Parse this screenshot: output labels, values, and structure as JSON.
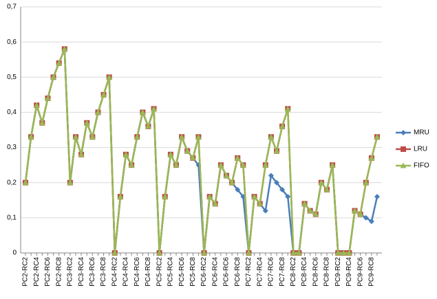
{
  "chart_data": {
    "type": "line",
    "categories": [
      "PC2-RC2",
      null,
      "PC2-RC4",
      null,
      "PC2-RC6",
      null,
      "PC2-RC8",
      null,
      "PC3-RC2",
      null,
      "PC3-RC4",
      null,
      "PC3-RC6",
      null,
      "PC3-RC8",
      null,
      "PC4-RC2",
      null,
      "PC4-RC4",
      null,
      "PC4-RC6",
      null,
      "PC4-RC8",
      null,
      "PC5-RC2",
      null,
      "PC5-RC4",
      null,
      "PC5-RC6",
      null,
      "PC5-RC8",
      null,
      "PC6-RC2",
      null,
      "PC6-RC4",
      null,
      "PC6-RC6",
      null,
      "PC6-RC8",
      null,
      "PC7-RC2",
      null,
      "PC7-RC4",
      null,
      "PC7-RC6",
      null,
      "PC7-RC8",
      null,
      "PC8-RC2",
      null,
      "PC8-RC4",
      null,
      "PC8-RC6",
      null,
      "PC8-RC8",
      null,
      "PC9-RC2",
      null,
      "PC9-RC4",
      null,
      "PC9-RC6",
      null,
      "PC9-RC8",
      null
    ],
    "series": [
      {
        "name": "MRU",
        "color": "#4a7ebb",
        "marker": "diamond",
        "values": [
          0.2,
          0.33,
          0.42,
          0.37,
          0.44,
          0.5,
          0.54,
          0.58,
          0.2,
          0.33,
          0.28,
          0.37,
          0.33,
          0.4,
          0.45,
          0.5,
          0,
          0.16,
          0.28,
          0.25,
          0.33,
          0.4,
          0.36,
          0.41,
          0,
          0.16,
          0.28,
          0.25,
          0.33,
          0.29,
          0.27,
          0.25,
          0,
          0.16,
          0.14,
          0.25,
          0.22,
          0.2,
          0.18,
          0.16,
          0,
          0.16,
          0.14,
          0.12,
          0.22,
          0.2,
          0.18,
          0.16,
          0,
          0,
          0.14,
          0.12,
          0.11,
          0.2,
          0.18,
          0.25,
          0,
          0,
          0,
          0.12,
          0.11,
          0.1,
          0.09,
          0.16
        ]
      },
      {
        "name": "LRU",
        "color": "#be4b48",
        "marker": "square",
        "values": [
          0.2,
          0.33,
          0.42,
          0.37,
          0.44,
          0.5,
          0.54,
          0.58,
          0.2,
          0.33,
          0.28,
          0.37,
          0.33,
          0.4,
          0.45,
          0.5,
          0,
          0.16,
          0.28,
          0.25,
          0.33,
          0.4,
          0.36,
          0.41,
          0,
          0.16,
          0.28,
          0.25,
          0.33,
          0.29,
          0.27,
          0.33,
          0,
          0.16,
          0.14,
          0.25,
          0.22,
          0.2,
          0.27,
          0.25,
          0,
          0.16,
          0.14,
          0.25,
          0.33,
          0.29,
          0.36,
          0.41,
          0,
          0,
          0.14,
          0.12,
          0.11,
          0.2,
          0.18,
          0.25,
          0,
          0,
          0,
          0.12,
          0.11,
          0.2,
          0.27,
          0.33
        ]
      },
      {
        "name": "FIFO",
        "color": "#98b954",
        "marker": "triangle",
        "values": [
          0.2,
          0.33,
          0.42,
          0.37,
          0.44,
          0.5,
          0.54,
          0.58,
          0.2,
          0.33,
          0.28,
          0.37,
          0.33,
          0.4,
          0.45,
          0.5,
          0,
          0.16,
          0.28,
          0.25,
          0.33,
          0.4,
          0.36,
          0.41,
          0,
          0.16,
          0.28,
          0.25,
          0.33,
          0.29,
          0.27,
          0.33,
          0,
          0.16,
          0.14,
          0.25,
          0.22,
          0.2,
          0.27,
          0.25,
          0,
          0.16,
          0.14,
          0.25,
          0.33,
          0.29,
          0.36,
          0.41,
          0,
          0,
          0.14,
          0.12,
          0.11,
          0.2,
          0.18,
          0.25,
          0,
          0,
          0,
          0.12,
          0.11,
          0.2,
          0.27,
          0.33
        ]
      }
    ],
    "ylim": [
      0,
      0.7
    ],
    "yticks": [
      0,
      {
        "value": 0.1,
        "label": "0,1"
      },
      {
        "value": 0.2,
        "label": "0,2"
      },
      {
        "value": 0.3,
        "label": "0,3"
      },
      {
        "value": 0.4,
        "label": "0,4"
      },
      {
        "value": 0.5,
        "label": "0,5"
      },
      {
        "value": 0.6,
        "label": "0,6"
      },
      {
        "value": 0.7,
        "label": "0,7"
      }
    ],
    "grid": true,
    "legend": "right"
  }
}
